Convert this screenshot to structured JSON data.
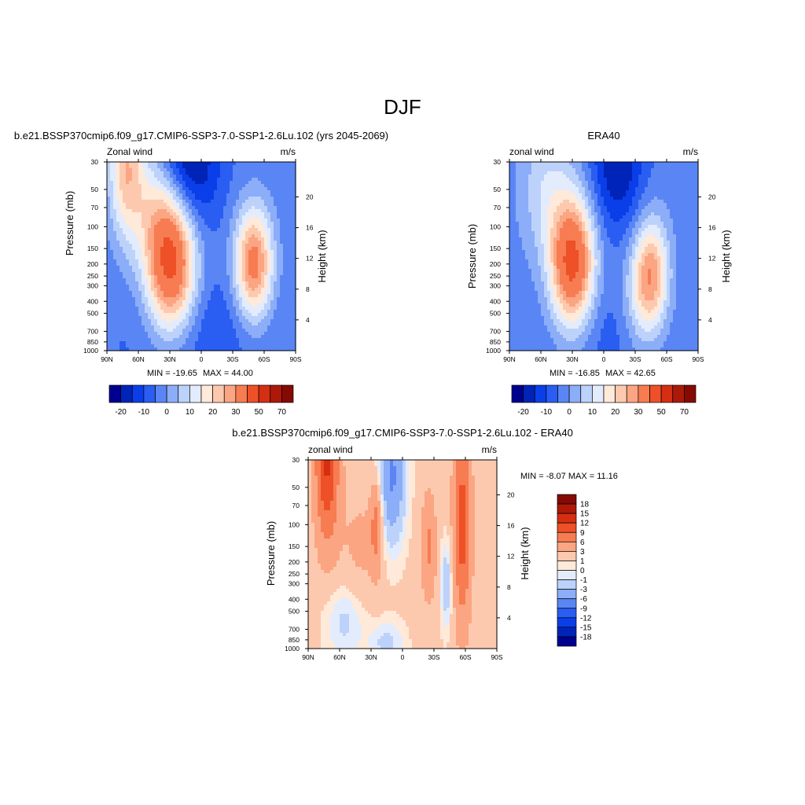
{
  "page": {
    "title": "DJF"
  },
  "chart_data": [
    {
      "type": "heatmap",
      "title": "b.e21.BSSP370cmip6.f09_g17.CMIP6-SSP3-7.0-SSP1-2.6Lu.102 (yrs 2045-2069)",
      "left_label": "Zonal wind",
      "units": "m/s",
      "ylabel": "Pressure (mb)",
      "ylabel_right": "Height (km)",
      "x_ticks": [
        "90N",
        "60N",
        "30N",
        "0",
        "30S",
        "60S",
        "90S"
      ],
      "y_ticks": [
        "30",
        "50",
        "70",
        "100",
        "150",
        "200",
        "250",
        "300",
        "400",
        "500",
        "700",
        "850",
        "1000"
      ],
      "height_ticks": [
        "20",
        "16",
        "12",
        "8",
        "4"
      ],
      "stats": {
        "min_label": "MIN = -19.65",
        "max_label": "MAX =  44.00",
        "min": -19.65,
        "max": 44.0
      },
      "features": [
        {
          "lat": 29,
          "p": 200,
          "value": 44
        },
        {
          "lat": -50,
          "p": 200,
          "value": 32
        },
        {
          "lat": 13,
          "p": 30,
          "value": -19.65
        },
        {
          "lat": 72,
          "p": 30,
          "value": 22
        }
      ],
      "colorbar": {
        "tick_labels": [
          "-20",
          "-10",
          "0",
          "10",
          "20",
          "30",
          "50",
          "70"
        ],
        "colors": [
          "#00008f",
          "#0024b8",
          "#0a3ee8",
          "#2a5df2",
          "#5a86f5",
          "#8cadf7",
          "#bcd2fa",
          "#e3ecfd",
          "#ffe9d9",
          "#fdc9ae",
          "#fba582",
          "#f77c52",
          "#ee5028",
          "#d42f12",
          "#ad1909",
          "#850a04"
        ]
      }
    },
    {
      "type": "heatmap",
      "title": "ERA40",
      "left_label": "zonal wind",
      "units": "m/s",
      "ylabel": "Pressure (mb)",
      "ylabel_right": "Height (km)",
      "x_ticks": [
        "90N",
        "60N",
        "30N",
        "0",
        "30S",
        "60S",
        "90S"
      ],
      "y_ticks": [
        "30",
        "50",
        "70",
        "100",
        "150",
        "200",
        "250",
        "300",
        "400",
        "500",
        "700",
        "850",
        "1000"
      ],
      "height_ticks": [
        "20",
        "16",
        "12",
        "8",
        "4"
      ],
      "stats": {
        "min_label": "MIN = -16.85",
        "max_label": "MAX =  42.65",
        "min": -16.85,
        "max": 42.65
      },
      "features": [
        {
          "lat": 30,
          "p": 200,
          "value": 42.65
        },
        {
          "lat": -45,
          "p": 250,
          "value": 28
        },
        {
          "lat": -13,
          "p": 30,
          "value": -16.85
        }
      ],
      "colorbar": {
        "tick_labels": [
          "-20",
          "-10",
          "0",
          "10",
          "20",
          "30",
          "50",
          "70"
        ],
        "colors": [
          "#00008f",
          "#0024b8",
          "#0a3ee8",
          "#2a5df2",
          "#5a86f5",
          "#8cadf7",
          "#bcd2fa",
          "#e3ecfd",
          "#ffe9d9",
          "#fdc9ae",
          "#fba582",
          "#f77c52",
          "#ee5028",
          "#d42f12",
          "#ad1909",
          "#850a04"
        ]
      }
    },
    {
      "type": "heatmap",
      "title": "b.e21.BSSP370cmip6.f09_g17.CMIP6-SSP3-7.0-SSP1-2.6Lu.102 - ERA40",
      "left_label": "zonal wind",
      "units": "m/s",
      "ylabel": "Pressure (mb)",
      "ylabel_right": "Height (km)",
      "x_ticks": [
        "90N",
        "60N",
        "30N",
        "0",
        "30S",
        "60S",
        "90S"
      ],
      "y_ticks": [
        "30",
        "50",
        "70",
        "100",
        "150",
        "200",
        "250",
        "300",
        "400",
        "500",
        "700",
        "850",
        "1000"
      ],
      "height_ticks": [
        "20",
        "16",
        "12",
        "8",
        "4"
      ],
      "stats": {
        "label": "MIN =  -8.07  MAX =  11.16",
        "min": -8.07,
        "max": 11.16
      },
      "features": [
        {
          "lat": 72,
          "p": 30,
          "value": 11.16
        },
        {
          "lat": -57,
          "p": 100,
          "value": 9
        },
        {
          "lat": 10,
          "p": 40,
          "value": -8.07
        }
      ],
      "colorbar": {
        "tick_labels": [
          "18",
          "15",
          "12",
          "9",
          "6",
          "3",
          "1",
          "0",
          "-1",
          "-3",
          "-6",
          "-9",
          "-12",
          "-15",
          "-18"
        ],
        "colors": [
          "#850a04",
          "#ad1909",
          "#d42f12",
          "#ee5028",
          "#f77c52",
          "#fba582",
          "#fdc9ae",
          "#ffe9d9",
          "#e3ecfd",
          "#bcd2fa",
          "#8cadf7",
          "#5a86f5",
          "#2a5df2",
          "#0a3ee8",
          "#0024b8",
          "#00008f"
        ]
      }
    }
  ]
}
